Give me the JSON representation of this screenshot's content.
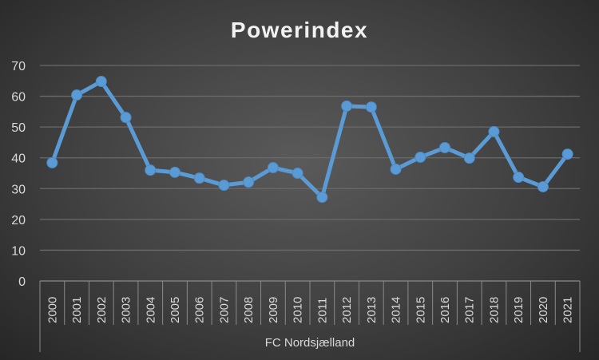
{
  "chart_data": {
    "type": "line",
    "title": "Powerindex",
    "xlabel": "FC Nordsjælland",
    "ylabel": "",
    "ylim": [
      0,
      70
    ],
    "yticks": [
      "0",
      "10",
      "20",
      "30",
      "40",
      "50",
      "60",
      "70"
    ],
    "grid": true,
    "categories": [
      "2000",
      "2001",
      "2002",
      "2003",
      "2004",
      "2005",
      "2006",
      "2007",
      "2008",
      "2009",
      "2010",
      "2011",
      "2012",
      "2013",
      "2014",
      "2015",
      "2016",
      "2017",
      "2018",
      "2019",
      "2020",
      "2021"
    ],
    "series": [
      {
        "name": "FC Nordsjælland",
        "color": "#5b9bd5",
        "values": [
          38.4,
          60.4,
          64.8,
          53.1,
          36.0,
          35.3,
          33.4,
          31.1,
          32.1,
          36.8,
          35.0,
          27.2,
          56.8,
          56.5,
          36.3,
          40.2,
          43.3,
          39.9,
          48.5,
          33.7,
          30.6,
          41.2
        ]
      }
    ]
  }
}
